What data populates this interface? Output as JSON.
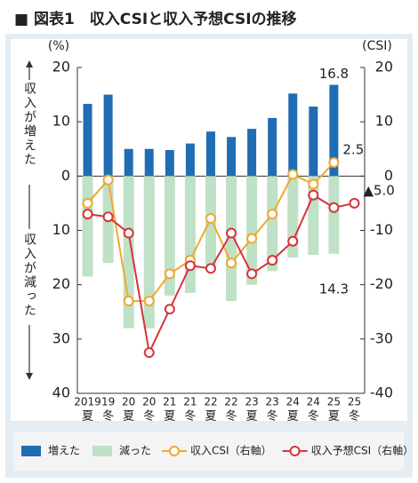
{
  "chart_data": {
    "type": "bar-line",
    "title": "■ 図表1　収入CSIと収入予想CSIの推移",
    "y_label": "(%)",
    "y2_label": "(CSI)",
    "up_label": "収入が増えた",
    "down_label": "収入が減った",
    "categories": [
      {
        "year": "2019",
        "season": "夏"
      },
      {
        "year": "19",
        "season": "冬"
      },
      {
        "year": "20",
        "season": "夏"
      },
      {
        "year": "20",
        "season": "冬"
      },
      {
        "year": "21",
        "season": "夏"
      },
      {
        "year": "21",
        "season": "冬"
      },
      {
        "year": "22",
        "season": "夏"
      },
      {
        "year": "22",
        "season": "冬"
      },
      {
        "year": "23",
        "season": "夏"
      },
      {
        "year": "23",
        "season": "冬"
      },
      {
        "year": "24",
        "season": "夏"
      },
      {
        "year": "24",
        "season": "冬"
      },
      {
        "year": "25",
        "season": "夏"
      },
      {
        "year": "25",
        "season": "冬"
      }
    ],
    "series": [
      {
        "name": "増えた",
        "kind": "bar",
        "color": "#1f6db3",
        "values": [
          13.3,
          15,
          5,
          5,
          4.8,
          6,
          8.2,
          7.2,
          8.7,
          10.7,
          15.2,
          12.8,
          16.8,
          null
        ],
        "value_labels": [
          null,
          null,
          null,
          null,
          null,
          null,
          null,
          null,
          null,
          null,
          null,
          null,
          "16.8",
          null
        ]
      },
      {
        "name": "減った",
        "kind": "bar",
        "color": "#bfe1c6",
        "values": [
          -18.5,
          -16,
          -28,
          -28,
          -22,
          -21.5,
          -16.5,
          -23,
          -20,
          -17.5,
          -15,
          -14.5,
          -14.3,
          null
        ],
        "value_labels": [
          null,
          null,
          null,
          null,
          null,
          null,
          null,
          null,
          null,
          null,
          null,
          null,
          "14.3",
          null
        ]
      },
      {
        "name": "収入CSI（右軸）",
        "kind": "line",
        "axis": "y2",
        "color": "#f0a830",
        "values": [
          -5,
          -0.7,
          -23,
          -23,
          -18,
          -15.5,
          -7.8,
          -16,
          -11.5,
          -7,
          0.3,
          -1.5,
          2.5,
          null
        ],
        "value_labels": [
          null,
          null,
          null,
          null,
          null,
          null,
          null,
          null,
          null,
          null,
          null,
          null,
          "2.5",
          null
        ]
      },
      {
        "name": "収入予想CSI（右軸）",
        "kind": "line",
        "axis": "y2",
        "color": "#d6333a",
        "values": [
          -7,
          -7.5,
          -10.5,
          -32.5,
          -24.5,
          -16.5,
          -17,
          -10.5,
          -18,
          -15.5,
          -12,
          -3.5,
          -5.8,
          -5.0
        ],
        "value_labels": [
          null,
          null,
          null,
          null,
          null,
          null,
          null,
          null,
          null,
          null,
          null,
          null,
          null,
          "▲5.0"
        ]
      }
    ],
    "ylim": [
      -40,
      20
    ],
    "yticks": [
      20,
      10,
      0,
      {
        "value": -10,
        "label": "10"
      },
      {
        "value": -20,
        "label": "20"
      },
      {
        "value": -30,
        "label": "30"
      },
      {
        "value": -40,
        "label": "40"
      }
    ],
    "y2lim": [
      -40,
      20
    ],
    "y2ticks": [
      20,
      10,
      0,
      -10,
      -20,
      -30,
      -40
    ]
  }
}
